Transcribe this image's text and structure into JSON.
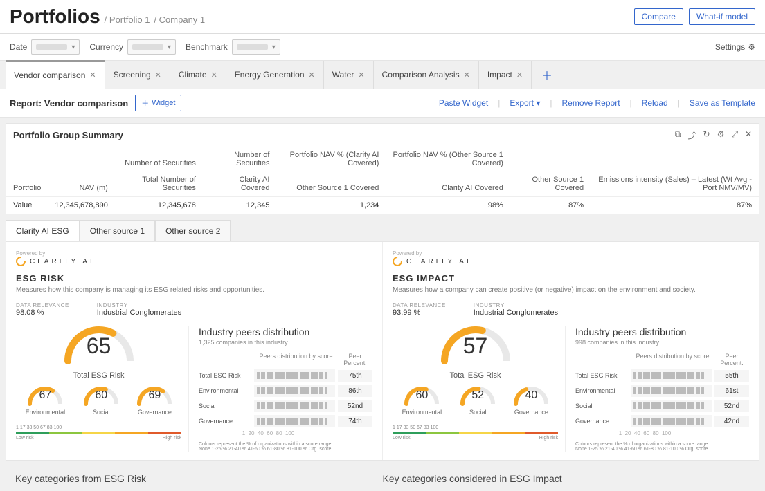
{
  "breadcrumb": {
    "main": "Portfolios",
    "p1": "/ Portfolio 1",
    "p2": "/ Company 1"
  },
  "top_actions": {
    "compare": "Compare",
    "whatif": "What-if model"
  },
  "filters": {
    "date": "Date",
    "currency": "Currency",
    "benchmark": "Benchmark",
    "settings": "Settings"
  },
  "tabs": [
    "Vendor comparison",
    "Screening",
    "Climate",
    "Energy Generation",
    "Water",
    "Comparison Analysis",
    "Impact"
  ],
  "report": {
    "title": "Report: Vendor comparison",
    "widget": "Widget",
    "paste": "Paste Widget",
    "export": "Export",
    "remove": "Remove Report",
    "reload": "Reload",
    "save": "Save as Template"
  },
  "panel": {
    "title": "Portfolio Group Summary",
    "superhead": [
      "",
      "",
      "Number of Securities",
      "Number of Securities",
      "Portfolio NAV % (Clarity AI Covered)",
      "Portfolio NAV % (Other Source 1 Covered)",
      ""
    ],
    "head": [
      "Portfolio",
      "NAV (m)",
      "Total Number of Securities",
      "Clarity AI Covered",
      "Other Source 1 Covered",
      "Clarity AI Covered",
      "Other Source 1 Covered",
      "Emissions intensity (Sales) – Latest (Wt Avg - Port NMV/MV)"
    ],
    "row": [
      "Value",
      "12,345,678,890",
      "12,345,678",
      "12,345",
      "1,234",
      "98%",
      "87%",
      "87%"
    ]
  },
  "esg_tabs": [
    "Clarity AI ESG",
    "Other source 1",
    "Other source 2"
  ],
  "risk": {
    "title": "ESG RISK",
    "sub": "Measures how this company is managing its ESG related risks and opportunities.",
    "relevance_lbl": "DATA RELEVANCE",
    "relevance": "98.08 %",
    "industry_lbl": "INDUSTRY",
    "industry": "Industrial Conglomerates",
    "score": "65",
    "score_lbl": "Total ESG Risk",
    "mini": [
      {
        "v": "67",
        "l": "Environmental"
      },
      {
        "v": "60",
        "l": "Social"
      },
      {
        "v": "69",
        "l": "Governance"
      }
    ],
    "dist_title": "Industry peers distribution",
    "dist_sub": "1,325 companies in this industry",
    "dist_h1": "Peers distribution by score",
    "dist_h2": "Peer Percent.",
    "rows": [
      {
        "l": "Total ESG Risk",
        "p": "75th"
      },
      {
        "l": "Environmental",
        "p": "86th"
      },
      {
        "l": "Social",
        "p": "52nd"
      },
      {
        "l": "Governance",
        "p": "74th"
      }
    ],
    "ticks": "1   17   33   50   67   83   100",
    "low": "Low risk",
    "high": "High risk",
    "colnote": "Colours represent the % of organizations within a score range:",
    "legend": "None   1-25 %   21-40 %   41-60 %   61-80 %   81-100 %   Org. score"
  },
  "impact": {
    "title": "ESG IMPACT",
    "sub": "Measures how a company can create positive (or negative) impact on the environment and society.",
    "relevance_lbl": "DATA RELEVANCE",
    "relevance": "93.99 %",
    "industry_lbl": "INDUSTRY",
    "industry": "Industrial Conglomerates",
    "score": "57",
    "score_lbl": "Total ESG Risk",
    "mini": [
      {
        "v": "60",
        "l": "Environmental"
      },
      {
        "v": "52",
        "l": "Social"
      },
      {
        "v": "40",
        "l": "Governance"
      }
    ],
    "dist_title": "Industry peers distribution",
    "dist_sub": "998 companies in this industry",
    "dist_h1": "Peers distribution by score",
    "dist_h2": "Peer Percent.",
    "rows": [
      {
        "l": "Total ESG Risk",
        "p": "55th"
      },
      {
        "l": "Environmental",
        "p": "61st"
      },
      {
        "l": "Social",
        "p": "52nd"
      },
      {
        "l": "Governance",
        "p": "42nd"
      }
    ],
    "ticks": "1   17   33   50   67   83   100",
    "low": "Low risk",
    "high": "High risk",
    "colnote": "Colours represent the % of organizations within a score range:",
    "legend": "None   1-25 %   21-40 %   41-60 %   61-80 %   81-100 %   Org. score"
  },
  "keycat": {
    "risk": "Key categories from ESG Risk",
    "impact": "Key categories considered in ESG Impact"
  },
  "colors": {
    "gauge_arc_bg": "#e8e8e8",
    "gauge_arc_fg": "#f5a623",
    "scale": [
      "#2e9e5b",
      "#8cc63f",
      "#f5d547",
      "#f5a623",
      "#e05a2b"
    ]
  }
}
